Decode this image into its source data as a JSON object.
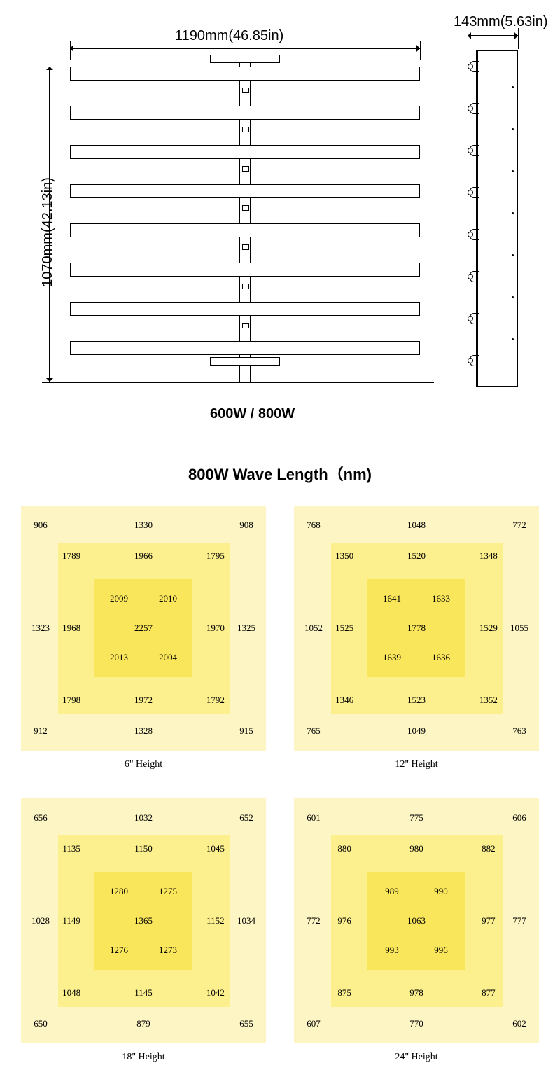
{
  "dimensions": {
    "width_label": "1190mm(46.85in)",
    "depth_label": "143mm(5.63in)",
    "height_label": "1070mm(42.13in)"
  },
  "model_label": "600W / 800W",
  "section_title": "800W Wave Length（nm)",
  "diagram": {
    "bar_count": 8,
    "line_color": "#000000",
    "background": "#ffffff"
  },
  "heatmap_style": {
    "outer_color": "#fdf6c4",
    "mid_color": "#fcef8e",
    "inner_color": "#fae65b",
    "text_color": "#000000",
    "value_fontsize": 13,
    "caption_fontsize": 14,
    "font_family": "Times New Roman, serif"
  },
  "heatmaps": [
    {
      "caption": "6\" Height",
      "outer": [
        906,
        1330,
        908,
        1323,
        1325,
        912,
        1328,
        915
      ],
      "mid": [
        1789,
        1966,
        1795,
        1968,
        1970,
        1798,
        1972,
        1792
      ],
      "inner": [
        2009,
        2010,
        2257,
        2013,
        2004
      ]
    },
    {
      "caption": "12\" Height",
      "outer": [
        768,
        1048,
        772,
        1052,
        1055,
        765,
        1049,
        763
      ],
      "mid": [
        1350,
        1520,
        1348,
        1525,
        1529,
        1346,
        1523,
        1352
      ],
      "inner": [
        1641,
        1633,
        1778,
        1639,
        1636
      ]
    },
    {
      "caption": "18\" Height",
      "outer": [
        656,
        1032,
        652,
        1028,
        1034,
        650,
        879,
        655
      ],
      "mid": [
        1135,
        1150,
        1045,
        1149,
        1152,
        1048,
        1145,
        1042
      ],
      "inner": [
        1280,
        1275,
        1365,
        1276,
        1273
      ]
    },
    {
      "caption": "24\" Height",
      "outer": [
        601,
        775,
        606,
        772,
        777,
        607,
        770,
        602
      ],
      "mid": [
        880,
        980,
        882,
        976,
        977,
        875,
        978,
        877
      ],
      "inner": [
        989,
        990,
        1063,
        993,
        996
      ]
    }
  ]
}
